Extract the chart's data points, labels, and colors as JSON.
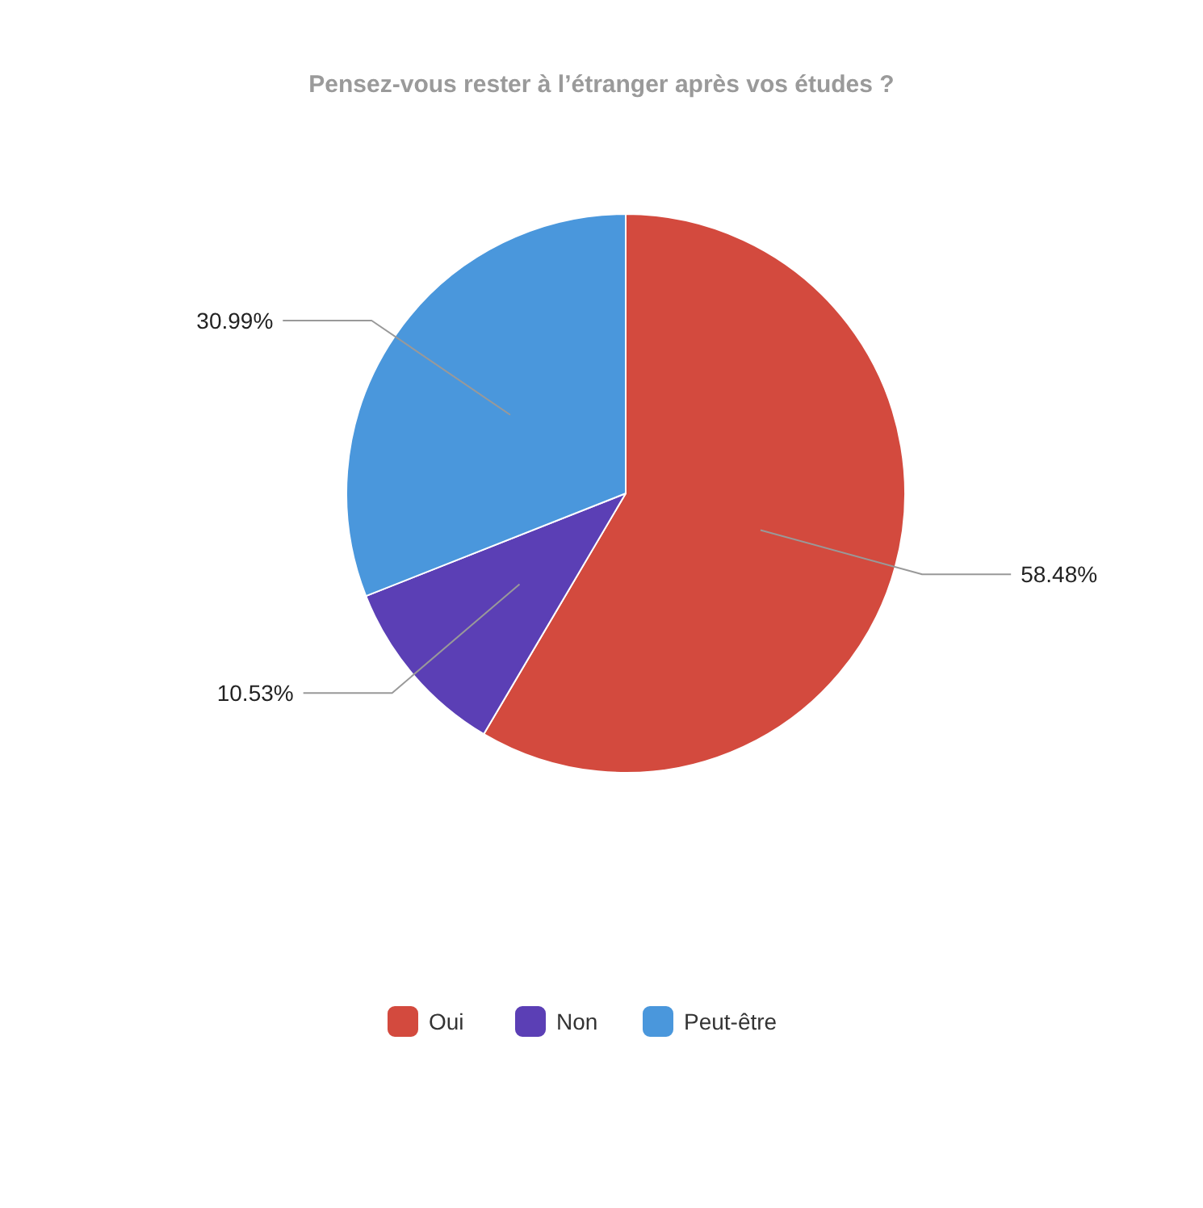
{
  "chart_data": {
    "type": "pie",
    "title": "Pensez-vous rester à l’étranger après vos études ?",
    "categories": [
      "Oui",
      "Non",
      "Peut-être"
    ],
    "values": [
      58.48,
      10.53,
      30.99
    ],
    "colors": [
      "#d34a3e",
      "#5b3fb5",
      "#4a97dc"
    ],
    "value_labels": [
      "58.48%",
      "10.53%",
      "30.99%"
    ],
    "legend": "bottom"
  }
}
